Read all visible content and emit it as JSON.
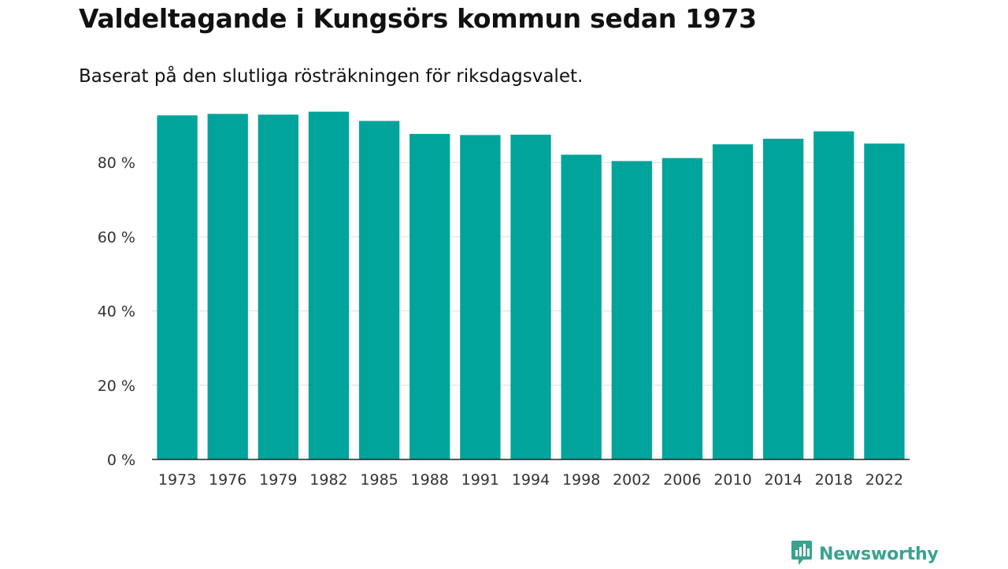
{
  "header": {
    "title": "Valdeltagande i Kungsörs kommun sedan 1973",
    "subtitle": "Baserat på den slutliga rösträkningen för riksdagsvalet."
  },
  "branding": {
    "name": "Newsworthy",
    "icon": "newsworthy-logo-icon",
    "color": "#3aa28f"
  },
  "chart_data": {
    "type": "bar",
    "title": "Valdeltagande i Kungsörs kommun sedan 1973",
    "subtitle": "Baserat på den slutliga rösträkningen för riksdagsvalet.",
    "xlabel": "",
    "ylabel": "",
    "categories": [
      "1973",
      "1976",
      "1979",
      "1982",
      "1985",
      "1988",
      "1991",
      "1994",
      "1998",
      "2002",
      "2006",
      "2010",
      "2014",
      "2018",
      "2022"
    ],
    "values": [
      92.7,
      93.1,
      92.9,
      93.7,
      91.2,
      87.7,
      87.4,
      87.5,
      82.1,
      80.4,
      81.2,
      84.9,
      86.4,
      88.4,
      85.1
    ],
    "ylim": [
      0,
      100
    ],
    "yticks": [
      0,
      20,
      40,
      60,
      80
    ],
    "ytick_labels": [
      "0 %",
      "20 %",
      "40 %",
      "60 %",
      "80 %"
    ],
    "grid": true,
    "legend": "none",
    "bar_color": "#00a49a",
    "grid_color": "#dddddd",
    "axis_color": "#222222"
  }
}
